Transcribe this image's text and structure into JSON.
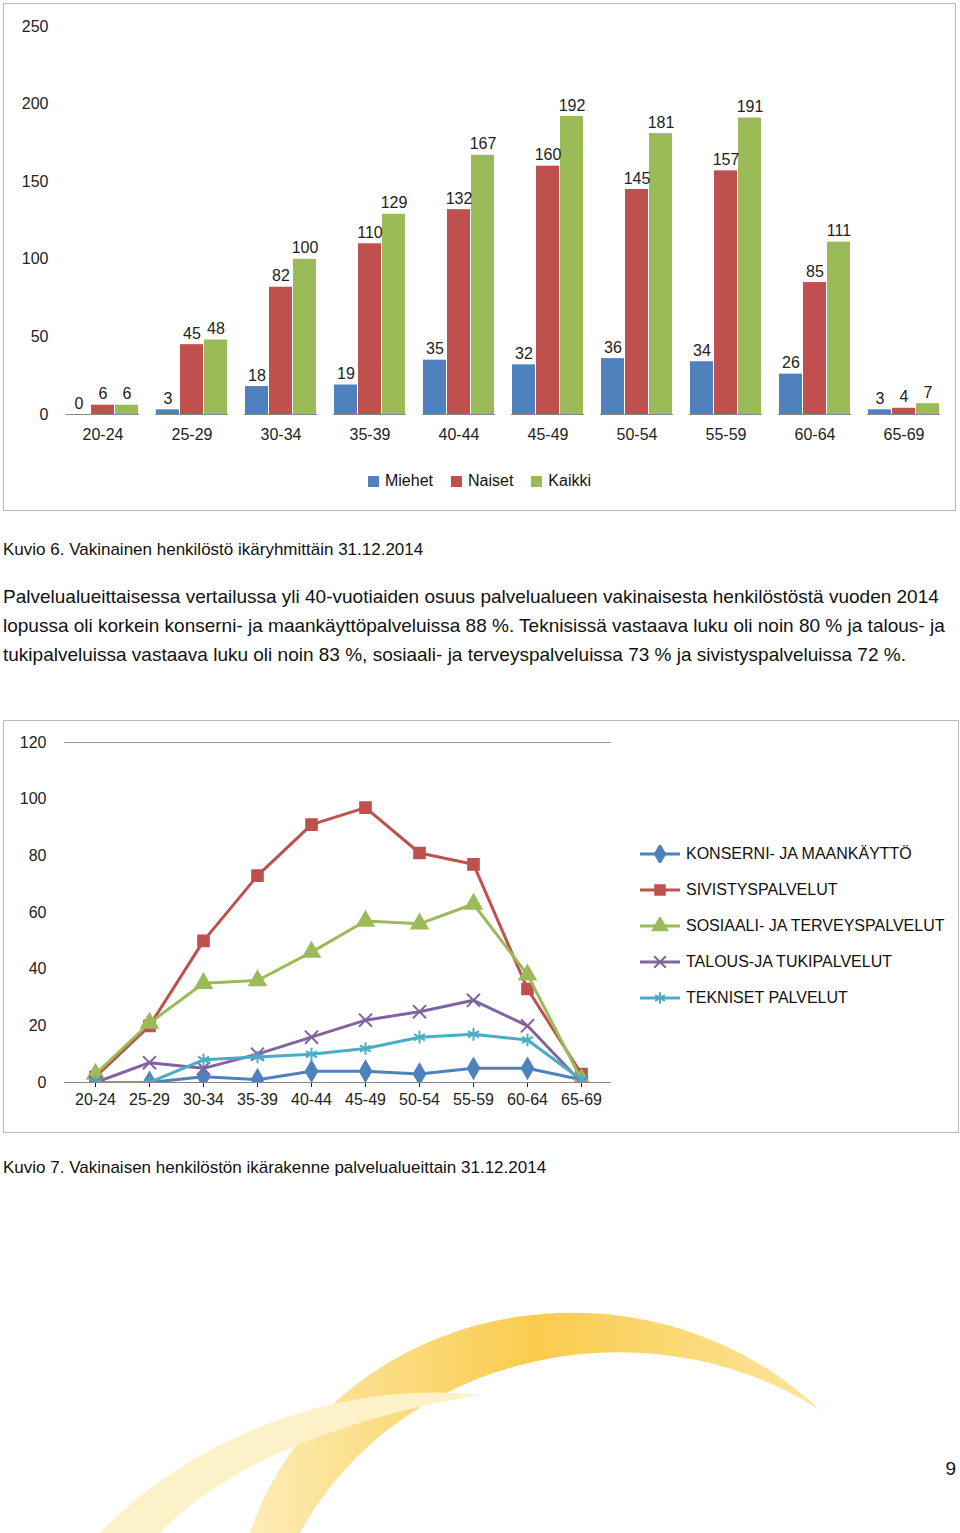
{
  "chart_data": [
    {
      "type": "bar",
      "title": "Kuvio 6. Vakinainen henkilöstö ikäryhmittäin 31.12.2014",
      "categories": [
        "20-24",
        "25-29",
        "30-34",
        "35-39",
        "40-44",
        "45-49",
        "50-54",
        "55-59",
        "60-64",
        "65-69"
      ],
      "series": [
        {
          "name": "Miehet",
          "color": "#4f81bd",
          "values": [
            0,
            3,
            18,
            19,
            35,
            32,
            36,
            34,
            26,
            3
          ]
        },
        {
          "name": "Naiset",
          "color": "#c0504d",
          "values": [
            6,
            45,
            82,
            110,
            132,
            160,
            145,
            157,
            85,
            4
          ]
        },
        {
          "name": "Kaikki",
          "color": "#9bbb59",
          "values": [
            6,
            48,
            100,
            129,
            167,
            192,
            181,
            191,
            111,
            7
          ]
        }
      ],
      "ylim": [
        0,
        250
      ],
      "yticks": [
        0,
        50,
        100,
        150,
        200,
        250
      ],
      "grid": false,
      "data_labels": true,
      "legend": "bottom"
    },
    {
      "type": "line",
      "title": "Kuvio 7. Vakinaisen henkilöstön ikärakenne palvelualueittain 31.12.2014",
      "categories": [
        "20-24",
        "25-29",
        "30-34",
        "35-39",
        "40-44",
        "45-49",
        "50-54",
        "55-59",
        "60-64",
        "65-69"
      ],
      "series": [
        {
          "name": "KONSERNI- JA MAANKÄYTTÖ",
          "color": "#4f81bd",
          "marker": "diamond",
          "values": [
            0,
            0,
            2,
            1,
            4,
            4,
            3,
            5,
            5,
            1
          ]
        },
        {
          "name": "SIVISTYSPALVELUT",
          "color": "#c0504d",
          "marker": "square",
          "values": [
            2,
            20,
            50,
            73,
            91,
            97,
            81,
            77,
            33,
            3
          ]
        },
        {
          "name": "SOSIAALI- JA TERVEYSPALVELUT",
          "color": "#9bbb59",
          "marker": "triangle",
          "values": [
            3,
            21,
            35,
            36,
            46,
            57,
            56,
            63,
            38,
            1
          ]
        },
        {
          "name": "TALOUS-JA TUKIPALVELUT",
          "color": "#8064a2",
          "marker": "times",
          "values": [
            0,
            7,
            5,
            10,
            16,
            22,
            25,
            29,
            20,
            0
          ]
        },
        {
          "name": "TEKNISET PALVELUT",
          "color": "#4bacc6",
          "marker": "asterisk",
          "values": [
            0,
            0,
            8,
            9,
            10,
            12,
            16,
            17,
            15,
            1
          ]
        }
      ],
      "ylim": [
        0,
        120
      ],
      "yticks": [
        0,
        20,
        40,
        60,
        80,
        100,
        120
      ],
      "grid": false,
      "legend": "right"
    }
  ],
  "text": {
    "paragraph": "Palvelualueittaisessa vertailussa yli 40-vuotiaiden osuus palvelualueen vakinaisesta henkilöstöstä vuoden 2014 lopussa oli korkein konserni- ja maankäyttöpalveluissa 88 %. Teknisissä vastaava luku oli noin 80 % ja talous- ja tukipalveluissa vastaava luku oli noin 83 %, sosiaali- ja terveyspalveluissa 73 % ja sivistyspalveluissa 72 %.",
    "page_number": "9"
  }
}
